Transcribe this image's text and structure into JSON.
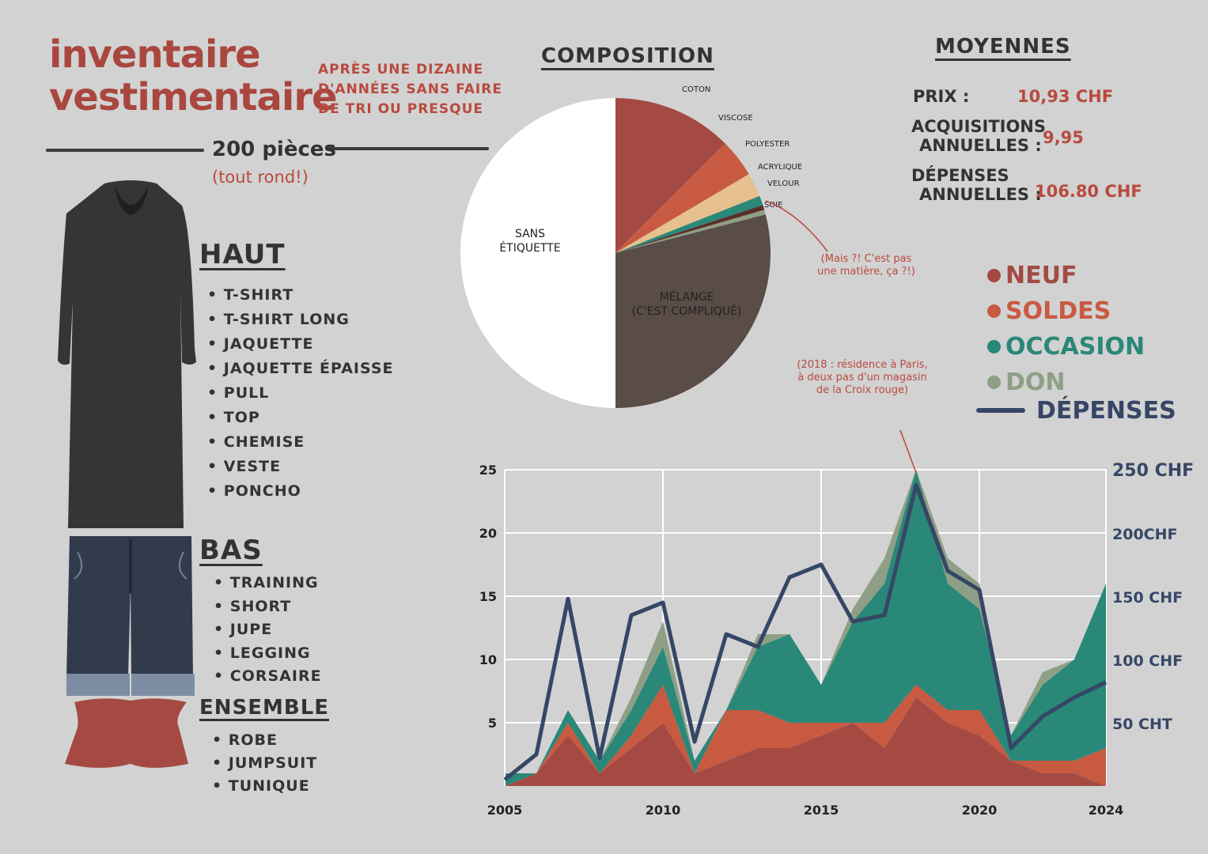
{
  "header": {
    "title_line1": "inventaire",
    "title_line2": "vestimentaire",
    "subtitle_line1": "APRÈS UNE DIZAINE",
    "subtitle_line2": "D'ANNÉES SANS FAIRE",
    "subtitle_line3": "DE TRI OU PRESQUE",
    "count_label": "200 pièces",
    "count_note": "(tout rond!)"
  },
  "categories": {
    "haut": {
      "title": "HAUT",
      "items": [
        "T-SHIRT",
        "T-SHIRT LONG",
        "JAQUETTE",
        "JAQUETTE ÉPAISSE",
        "PULL",
        "TOP",
        "CHEMISE",
        "VESTE",
        "PONCHO"
      ]
    },
    "bas": {
      "title": "BAS",
      "items": [
        "TRAINING",
        "SHORT",
        "JUPE",
        "LEGGING",
        "CORSAIRE"
      ]
    },
    "ensemble": {
      "title": "ENSEMBLE",
      "items": [
        "ROBE",
        "JUMPSUIT",
        "TUNIQUE"
      ]
    }
  },
  "composition": {
    "title": "COMPOSITION",
    "note_line1": "(Mais ?! C'est pas",
    "note_line2": "une matière, ça ?!)"
  },
  "averages": {
    "title": "MOYENNES",
    "price_label": "PRIX :",
    "price_value": "10,93 CHF",
    "acq_label_line1": "ACQUISITIONS",
    "acq_label_line2": "ANNUELLES :",
    "acq_value": "9,95",
    "spend_label_line1": "DÉPENSES",
    "spend_label_line2": "ANNUELLES :",
    "spend_value": "106.80 CHF"
  },
  "legend": {
    "items": [
      {
        "label": "NEUF",
        "color": "#a44a43"
      },
      {
        "label": "SOLDES",
        "color": "#c85a41"
      },
      {
        "label": "OCCASION",
        "color": "#2a8878"
      },
      {
        "label": "DON",
        "color": "#8f9f86"
      }
    ],
    "line_label": "DÉPENSES",
    "line_color": "#364766"
  },
  "annotation": {
    "line1": "(2018 : résidence à Paris,",
    "line2": "à deux pas d'un magasin",
    "line3": "de la Croix rouge)"
  },
  "chart_data": [
    {
      "type": "pie",
      "title": "COMPOSITION",
      "slices": [
        {
          "label": "COTON",
          "value": 25,
          "color": "#a44a43"
        },
        {
          "label": "VISCOSE",
          "value": 8,
          "color": "#c85a41"
        },
        {
          "label": "POLYESTER",
          "value": 5,
          "color": "#e6c08e"
        },
        {
          "label": "ACRYLIQUE",
          "value": 2,
          "color": "#2a8878"
        },
        {
          "label": "VELOUR",
          "value": 1,
          "color": "#5a2f2a"
        },
        {
          "label": "SOIE",
          "value": 1,
          "color": "#8f9f86"
        },
        {
          "label": "MÉLANGE (C'EST COMPLIQUÉ)",
          "value": 58,
          "color": "#5a4c46"
        },
        {
          "label": "SANS ÉTIQUETTE",
          "value": 100,
          "color": "#ffffff"
        }
      ]
    },
    {
      "type": "area",
      "stacked": true,
      "x": [
        2005,
        2006,
        2007,
        2008,
        2009,
        2010,
        2011,
        2012,
        2013,
        2014,
        2015,
        2016,
        2017,
        2018,
        2019,
        2020,
        2021,
        2022,
        2023,
        2024
      ],
      "x_ticks": [
        "2005",
        "2010",
        "2015",
        "2020",
        "2024"
      ],
      "ylim": [
        0,
        25
      ],
      "y_ticks": [
        "5",
        "10",
        "15",
        "20",
        "25"
      ],
      "series": [
        {
          "name": "NEUF",
          "color": "#a44a43",
          "values": [
            0,
            1,
            4,
            1,
            3,
            5,
            1,
            2,
            3,
            3,
            4,
            5,
            3,
            7,
            5,
            4,
            2,
            1,
            1,
            0
          ]
        },
        {
          "name": "SOLDES",
          "color": "#c85a41",
          "values": [
            0,
            0,
            1,
            0,
            1,
            3,
            0,
            4,
            3,
            2,
            1,
            0,
            2,
            1,
            1,
            2,
            0,
            1,
            1,
            3
          ]
        },
        {
          "name": "OCCASION",
          "color": "#2a8878",
          "values": [
            1,
            0,
            1,
            1,
            2,
            3,
            1,
            0,
            5,
            7,
            3,
            8,
            11,
            17,
            10,
            8,
            2,
            6,
            8,
            13
          ]
        },
        {
          "name": "DON",
          "color": "#8f9f86",
          "values": [
            0,
            0,
            0,
            0,
            1,
            2,
            0,
            0,
            1,
            0,
            0,
            1,
            2,
            0,
            2,
            2,
            0,
            1,
            0,
            0
          ]
        }
      ],
      "line": {
        "name": "DÉPENSES",
        "color": "#364766",
        "values": [
          5,
          25,
          148,
          22,
          135,
          145,
          35,
          120,
          110,
          165,
          175,
          130,
          135,
          238,
          170,
          155,
          30,
          55,
          70,
          82
        ],
        "ylim": [
          0,
          250
        ],
        "y_ticks": [
          "50 CHT",
          "100 CHF",
          "150 CHF",
          "200CHF",
          "250 CHF"
        ]
      }
    }
  ]
}
